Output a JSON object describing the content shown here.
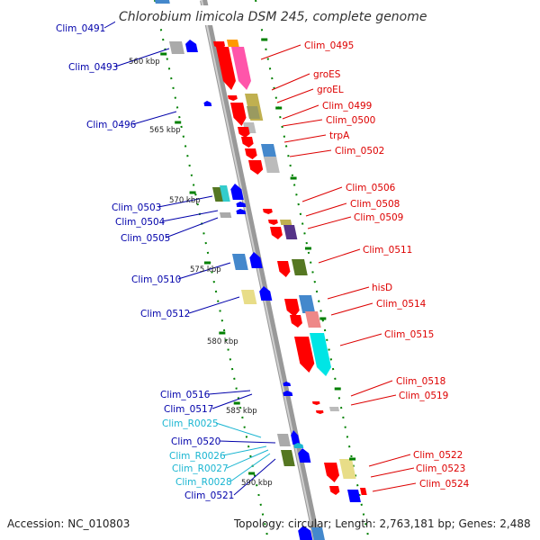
{
  "title": "Chlorobium limicola DSM 245, complete genome",
  "footer": {
    "accession": "Accession: NC_010803",
    "topology": "Topology: circular; Length: 2,763,181 bp; Genes: 2,488"
  },
  "colors": {
    "forward": "#ff0000",
    "reverse": "#0000ff",
    "rna": "#19b5d1",
    "backbone": "#999999",
    "tick": "#008000"
  },
  "scale": [
    {
      "label": "560 kbp",
      "pos": 560
    },
    {
      "label": "565 kbp",
      "pos": 565
    },
    {
      "label": "570 kbp",
      "pos": 570
    },
    {
      "label": "575 kbp",
      "pos": 575
    },
    {
      "label": "580 kbp",
      "pos": 580
    },
    {
      "label": "585 kbp",
      "pos": 585
    },
    {
      "label": "590 kbp",
      "pos": 590
    }
  ],
  "genes_left": [
    {
      "name": "Clim_0491",
      "type": "gene"
    },
    {
      "name": "Clim_0493",
      "type": "gene"
    },
    {
      "name": "Clim_0496",
      "type": "gene"
    },
    {
      "name": "Clim_0503",
      "type": "gene"
    },
    {
      "name": "Clim_0504",
      "type": "gene"
    },
    {
      "name": "Clim_0505",
      "type": "gene"
    },
    {
      "name": "Clim_0510",
      "type": "gene"
    },
    {
      "name": "Clim_0512",
      "type": "gene"
    },
    {
      "name": "Clim_0516",
      "type": "gene"
    },
    {
      "name": "Clim_0517",
      "type": "gene"
    },
    {
      "name": "Clim_R0025",
      "type": "rna"
    },
    {
      "name": "Clim_0520",
      "type": "gene"
    },
    {
      "name": "Clim_R0026",
      "type": "rna"
    },
    {
      "name": "Clim_R0027",
      "type": "rna"
    },
    {
      "name": "Clim_R0028",
      "type": "rna"
    },
    {
      "name": "Clim_0521",
      "type": "gene"
    }
  ],
  "genes_right": [
    {
      "name": "Clim_0495"
    },
    {
      "name": "groES"
    },
    {
      "name": "groEL"
    },
    {
      "name": "Clim_0499"
    },
    {
      "name": "Clim_0500"
    },
    {
      "name": "trpA"
    },
    {
      "name": "Clim_0502"
    },
    {
      "name": "Clim_0506"
    },
    {
      "name": "Clim_0508"
    },
    {
      "name": "Clim_0509"
    },
    {
      "name": "Clim_0511"
    },
    {
      "name": "hisD"
    },
    {
      "name": "Clim_0514"
    },
    {
      "name": "Clim_0515"
    },
    {
      "name": "Clim_0518"
    },
    {
      "name": "Clim_0519"
    },
    {
      "name": "Clim_0522"
    },
    {
      "name": "Clim_0523"
    },
    {
      "name": "Clim_0524"
    }
  ]
}
